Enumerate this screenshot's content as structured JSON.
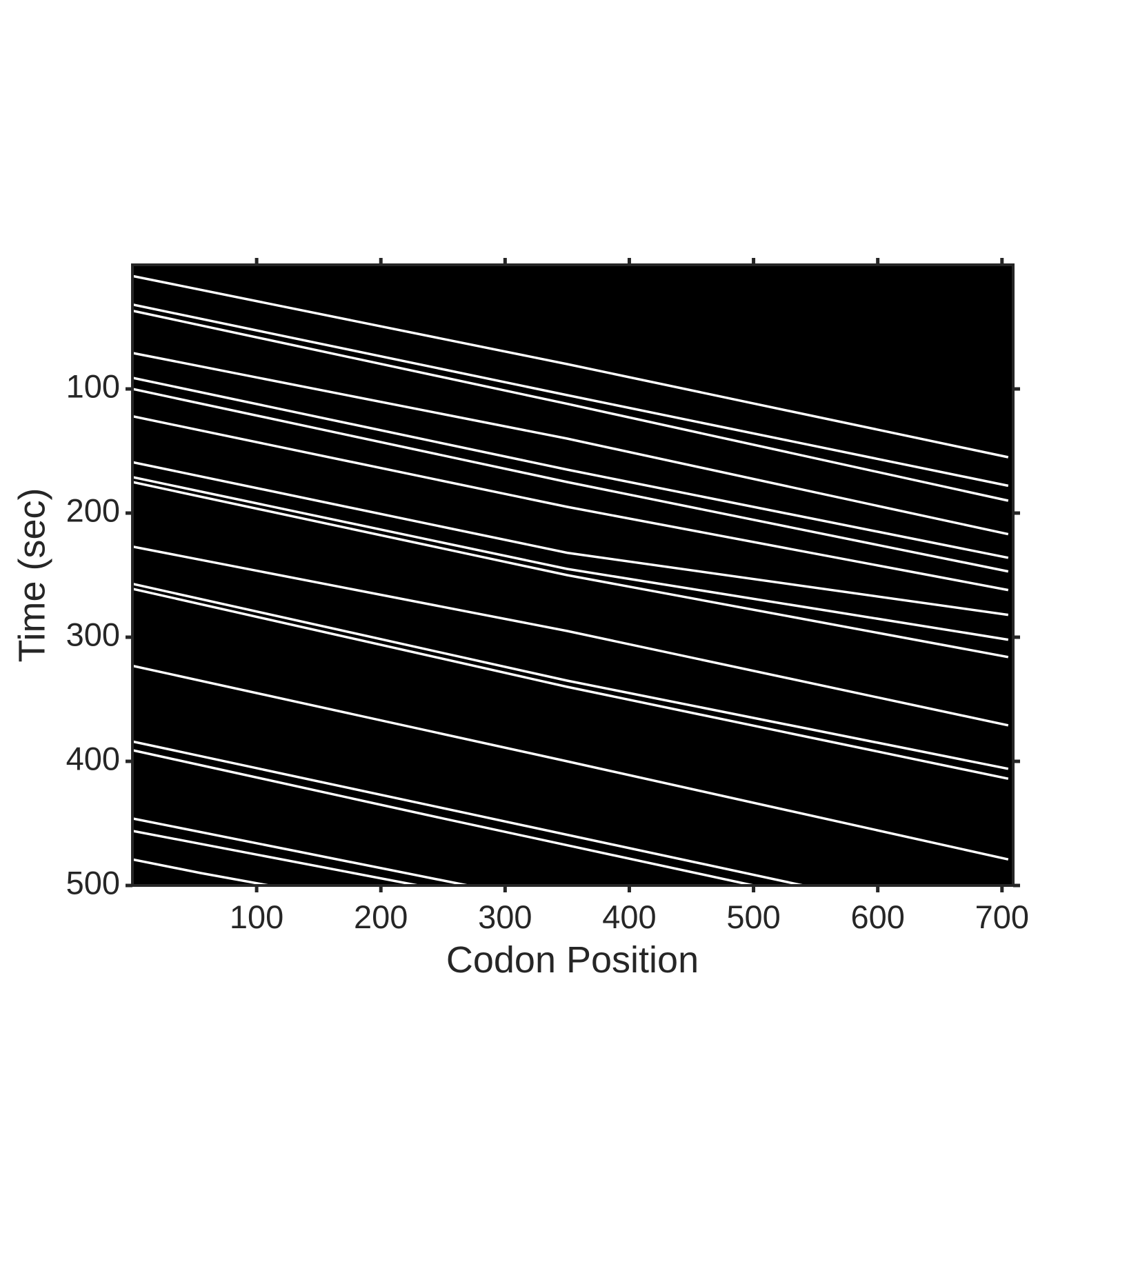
{
  "chart_data": {
    "type": "line",
    "xlabel": "Codon Position",
    "ylabel": "Time (sec)",
    "xlim": [
      0,
      709
    ],
    "ylim": [
      0,
      500
    ],
    "y_reversed": true,
    "xticks": [
      100,
      200,
      300,
      400,
      500,
      600,
      700
    ],
    "yticks": [
      100,
      200,
      300,
      400,
      500
    ],
    "background": "#000000",
    "series": [
      {
        "color": "#ffffff",
        "x": [
          0,
          350,
          705
        ],
        "values": [
          9,
          80,
          155
        ]
      },
      {
        "color": "#ffffff",
        "x": [
          0,
          350,
          705
        ],
        "values": [
          32,
          105,
          178
        ]
      },
      {
        "color": "#ffffff",
        "x": [
          0,
          350,
          705
        ],
        "values": [
          37,
          112,
          190
        ]
      },
      {
        "color": "#ffffff",
        "x": [
          0,
          350,
          705
        ],
        "values": [
          71,
          140,
          217
        ]
      },
      {
        "color": "#ffffff",
        "x": [
          0,
          350,
          705
        ],
        "values": [
          91,
          165,
          236
        ]
      },
      {
        "color": "#ffffff",
        "x": [
          0,
          350,
          705
        ],
        "values": [
          100,
          175,
          247
        ]
      },
      {
        "color": "#ffffff",
        "x": [
          0,
          350,
          705
        ],
        "values": [
          122,
          195,
          262
        ]
      },
      {
        "color": "#ffffff",
        "x": [
          0,
          350,
          705
        ],
        "values": [
          159,
          232,
          282
        ]
      },
      {
        "color": "#ffffff",
        "x": [
          0,
          350,
          705
        ],
        "values": [
          171,
          245,
          302
        ]
      },
      {
        "color": "#ffffff",
        "x": [
          0,
          350,
          705
        ],
        "values": [
          175,
          250,
          316
        ]
      },
      {
        "color": "#ffffff",
        "x": [
          0,
          350,
          705
        ],
        "values": [
          227,
          295,
          371
        ]
      },
      {
        "color": "#ffffff",
        "x": [
          0,
          350,
          705
        ],
        "values": [
          257,
          335,
          406
        ]
      },
      {
        "color": "#ffffff",
        "x": [
          0,
          350,
          705
        ],
        "values": [
          261,
          340,
          414
        ]
      },
      {
        "color": "#ffffff",
        "x": [
          0,
          350,
          705
        ],
        "values": [
          323,
          400,
          479
        ]
      },
      {
        "color": "#ffffff",
        "x": [
          0,
          270,
          540
        ],
        "values": [
          384,
          442,
          500
        ]
      },
      {
        "color": "#ffffff",
        "x": [
          0,
          250,
          500
        ],
        "values": [
          391,
          446,
          500
        ]
      },
      {
        "color": "#ffffff",
        "x": [
          0,
          135,
          270
        ],
        "values": [
          446,
          473,
          500
        ]
      },
      {
        "color": "#ffffff",
        "x": [
          0,
          115,
          230
        ],
        "values": [
          456,
          478,
          500
        ]
      },
      {
        "color": "#ffffff",
        "x": [
          0,
          55,
          110
        ],
        "values": [
          479,
          490,
          500
        ]
      }
    ]
  }
}
